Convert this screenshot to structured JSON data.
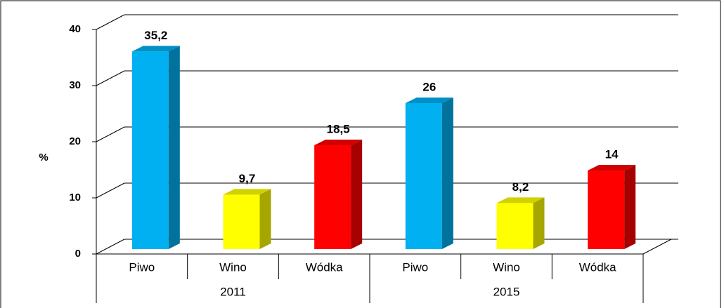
{
  "chart_data": {
    "type": "bar3d",
    "ylabel": "%",
    "categories": [
      "Piwo",
      "Wino",
      "Wódka",
      "Piwo",
      "Wino",
      "Wódka"
    ],
    "groups": [
      "2011",
      "2015"
    ],
    "values": [
      35.2,
      9.7,
      18.5,
      26,
      8.2,
      14
    ],
    "value_labels": [
      "35,2",
      "9,7",
      "18,5",
      "26",
      "8,2",
      "14"
    ],
    "colors": [
      "#00b0f0",
      "#ffff00",
      "#ff0000",
      "#00b0f0",
      "#ffff00",
      "#ff0000"
    ],
    "ylim": [
      0,
      40
    ],
    "yticks": [
      0,
      10,
      20,
      30,
      40
    ],
    "grid": true
  }
}
